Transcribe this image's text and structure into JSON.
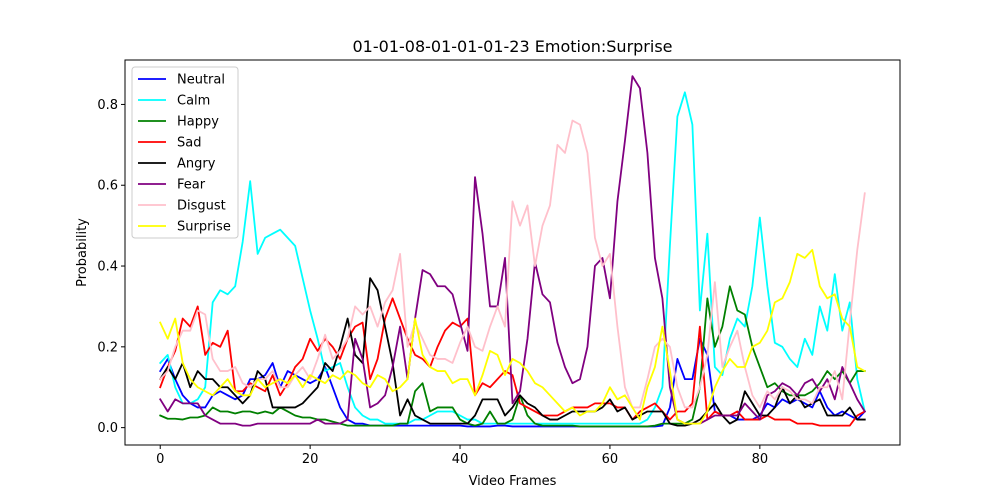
{
  "chart_data": {
    "type": "line",
    "title": "01-01-08-01-01-01-23 Emotion:Surprise",
    "xlabel": "Video Frames",
    "ylabel": "Probability",
    "xlim": [
      -4.7,
      98.7
    ],
    "ylim": [
      -0.043,
      0.91
    ],
    "xticks": [
      0,
      20,
      40,
      60,
      80
    ],
    "yticks": [
      0.0,
      0.2,
      0.4,
      0.6,
      0.8
    ],
    "ytick_labels": [
      "0.0",
      "0.2",
      "0.4",
      "0.6",
      "0.8"
    ],
    "legend_position": "upper-left",
    "grid": false,
    "x": [
      0,
      1,
      2,
      3,
      4,
      5,
      6,
      7,
      8,
      9,
      10,
      11,
      12,
      13,
      14,
      15,
      16,
      17,
      18,
      19,
      20,
      21,
      22,
      23,
      24,
      25,
      26,
      27,
      28,
      29,
      30,
      31,
      32,
      33,
      34,
      35,
      36,
      37,
      38,
      39,
      40,
      41,
      42,
      43,
      44,
      45,
      46,
      47,
      48,
      49,
      50,
      51,
      52,
      53,
      54,
      55,
      56,
      57,
      58,
      59,
      60,
      61,
      62,
      63,
      64,
      65,
      66,
      67,
      68,
      69,
      70,
      71,
      72,
      73,
      74,
      75,
      76,
      77,
      78,
      79,
      80,
      81,
      82,
      83,
      84,
      85,
      86,
      87,
      88,
      89,
      90,
      91,
      92,
      93,
      94
    ],
    "series": [
      {
        "name": "Neutral",
        "color": "#0000ff",
        "values": [
          0.14,
          0.17,
          0.12,
          0.08,
          0.06,
          0.05,
          0.05,
          0.08,
          0.09,
          0.08,
          0.07,
          0.08,
          0.12,
          0.12,
          0.13,
          0.16,
          0.1,
          0.14,
          0.13,
          0.12,
          0.11,
          0.12,
          0.15,
          0.1,
          0.05,
          0.02,
          0.01,
          0.01,
          0.005,
          0.005,
          0.005,
          0.005,
          0.005,
          0.005,
          0.005,
          0.005,
          0.005,
          0.005,
          0.005,
          0.005,
          0.005,
          0.003,
          0.003,
          0.003,
          0.003,
          0.005,
          0.005,
          0.003,
          0.003,
          0.003,
          0.003,
          0.003,
          0.003,
          0.003,
          0.003,
          0.003,
          0.003,
          0.003,
          0.003,
          0.003,
          0.003,
          0.003,
          0.003,
          0.003,
          0.003,
          0.003,
          0.003,
          0.005,
          0.05,
          0.17,
          0.12,
          0.12,
          0.22,
          0.18,
          0.04,
          0.03,
          0.03,
          0.02,
          0.02,
          0.02,
          0.03,
          0.06,
          0.05,
          0.07,
          0.06,
          0.07,
          0.06,
          0.05,
          0.09,
          0.05,
          0.03,
          0.04,
          0.03,
          0.02,
          0.04
        ]
      },
      {
        "name": "Calm",
        "color": "#00ffff",
        "values": [
          0.16,
          0.18,
          0.1,
          0.06,
          0.06,
          0.07,
          0.1,
          0.31,
          0.34,
          0.33,
          0.35,
          0.46,
          0.61,
          0.43,
          0.47,
          0.48,
          0.49,
          0.47,
          0.45,
          0.37,
          0.29,
          0.22,
          0.14,
          0.15,
          0.16,
          0.1,
          0.05,
          0.03,
          0.02,
          0.02,
          0.01,
          0.01,
          0.01,
          0.01,
          0.02,
          0.02,
          0.03,
          0.04,
          0.04,
          0.04,
          0.03,
          0.02,
          0.02,
          0.01,
          0.01,
          0.01,
          0.01,
          0.01,
          0.01,
          0.01,
          0.01,
          0.01,
          0.01,
          0.01,
          0.01,
          0.01,
          0.01,
          0.01,
          0.01,
          0.01,
          0.01,
          0.01,
          0.01,
          0.01,
          0.01,
          0.02,
          0.05,
          0.1,
          0.45,
          0.77,
          0.83,
          0.75,
          0.29,
          0.48,
          0.15,
          0.13,
          0.22,
          0.27,
          0.25,
          0.35,
          0.52,
          0.35,
          0.21,
          0.2,
          0.17,
          0.15,
          0.22,
          0.18,
          0.3,
          0.24,
          0.38,
          0.24,
          0.31,
          0.12,
          0.04
        ]
      },
      {
        "name": "Happy",
        "color": "#008000",
        "values": [
          0.03,
          0.022,
          0.022,
          0.02,
          0.025,
          0.025,
          0.03,
          0.05,
          0.04,
          0.04,
          0.035,
          0.04,
          0.04,
          0.035,
          0.04,
          0.035,
          0.05,
          0.04,
          0.03,
          0.025,
          0.025,
          0.02,
          0.02,
          0.015,
          0.01,
          0.005,
          0.005,
          0.005,
          0.005,
          0.005,
          0.005,
          0.005,
          0.01,
          0.01,
          0.09,
          0.11,
          0.04,
          0.05,
          0.05,
          0.05,
          0.02,
          0.01,
          0.005,
          0.01,
          0.04,
          0.01,
          0.01,
          0.02,
          0.08,
          0.03,
          0.01,
          0.005,
          0.005,
          0.005,
          0.005,
          0.005,
          0.003,
          0.003,
          0.003,
          0.003,
          0.003,
          0.003,
          0.003,
          0.003,
          0.003,
          0.003,
          0.005,
          0.01,
          0.01,
          0.01,
          0.01,
          0.02,
          0.1,
          0.32,
          0.2,
          0.25,
          0.35,
          0.29,
          0.28,
          0.2,
          0.15,
          0.1,
          0.11,
          0.09,
          0.08,
          0.08,
          0.08,
          0.09,
          0.11,
          0.14,
          0.12,
          0.14,
          0.11,
          0.14,
          0.14
        ]
      },
      {
        "name": "Sad",
        "color": "#ff0000",
        "values": [
          0.1,
          0.15,
          0.19,
          0.27,
          0.25,
          0.3,
          0.18,
          0.21,
          0.2,
          0.24,
          0.09,
          0.09,
          0.11,
          0.1,
          0.09,
          0.13,
          0.08,
          0.11,
          0.15,
          0.17,
          0.22,
          0.19,
          0.22,
          0.2,
          0.17,
          0.22,
          0.25,
          0.26,
          0.12,
          0.17,
          0.27,
          0.32,
          0.27,
          0.22,
          0.18,
          0.17,
          0.15,
          0.2,
          0.24,
          0.26,
          0.25,
          0.27,
          0.08,
          0.11,
          0.1,
          0.12,
          0.14,
          0.13,
          0.06,
          0.05,
          0.04,
          0.03,
          0.03,
          0.03,
          0.04,
          0.05,
          0.05,
          0.05,
          0.06,
          0.06,
          0.06,
          0.05,
          0.05,
          0.02,
          0.04,
          0.05,
          0.06,
          0.04,
          0.02,
          0.04,
          0.04,
          0.06,
          0.25,
          0.02,
          0.04,
          0.03,
          0.03,
          0.04,
          0.02,
          0.02,
          0.02,
          0.03,
          0.02,
          0.02,
          0.02,
          0.01,
          0.01,
          0.01,
          0.005,
          0.005,
          0.005,
          0.005,
          0.005,
          0.03,
          0.04
        ]
      },
      {
        "name": "Angry",
        "color": "#000000",
        "values": [
          0.12,
          0.15,
          0.12,
          0.16,
          0.1,
          0.14,
          0.12,
          0.12,
          0.1,
          0.1,
          0.08,
          0.06,
          0.08,
          0.14,
          0.12,
          0.05,
          0.05,
          0.05,
          0.05,
          0.06,
          0.08,
          0.1,
          0.16,
          0.14,
          0.2,
          0.27,
          0.18,
          0.16,
          0.37,
          0.34,
          0.25,
          0.16,
          0.03,
          0.07,
          0.03,
          0.02,
          0.01,
          0.01,
          0.01,
          0.01,
          0.01,
          0.01,
          0.03,
          0.07,
          0.07,
          0.07,
          0.03,
          0.05,
          0.08,
          0.06,
          0.05,
          0.03,
          0.02,
          0.02,
          0.03,
          0.04,
          0.04,
          0.04,
          0.04,
          0.05,
          0.07,
          0.04,
          0.05,
          0.02,
          0.03,
          0.04,
          0.04,
          0.04,
          0.01,
          0.005,
          0.005,
          0.01,
          0.02,
          0.04,
          0.06,
          0.03,
          0.01,
          0.02,
          0.09,
          0.06,
          0.03,
          0.03,
          0.05,
          0.1,
          0.06,
          0.08,
          0.05,
          0.06,
          0.07,
          0.03,
          0.03,
          0.03,
          0.05,
          0.02,
          0.02
        ]
      },
      {
        "name": "Fear",
        "color": "#800080",
        "values": [
          0.07,
          0.04,
          0.07,
          0.06,
          0.06,
          0.06,
          0.03,
          0.02,
          0.01,
          0.01,
          0.01,
          0.005,
          0.005,
          0.01,
          0.01,
          0.01,
          0.01,
          0.01,
          0.01,
          0.01,
          0.01,
          0.02,
          0.01,
          0.01,
          0.01,
          0.02,
          0.22,
          0.17,
          0.05,
          0.06,
          0.08,
          0.15,
          0.25,
          0.12,
          0.27,
          0.39,
          0.38,
          0.35,
          0.35,
          0.33,
          0.26,
          0.19,
          0.62,
          0.48,
          0.3,
          0.3,
          0.42,
          0.06,
          0.09,
          0.22,
          0.41,
          0.33,
          0.31,
          0.21,
          0.15,
          0.11,
          0.12,
          0.2,
          0.4,
          0.42,
          0.32,
          0.56,
          0.71,
          0.87,
          0.84,
          0.68,
          0.42,
          0.32,
          0.1,
          0.02,
          0.01,
          0.01,
          0.01,
          0.02,
          0.03,
          0.03,
          0.03,
          0.03,
          0.06,
          0.04,
          0.02,
          0.08,
          0.09,
          0.11,
          0.1,
          0.08,
          0.11,
          0.12,
          0.09,
          0.12,
          0.07,
          0.15,
          0.11,
          0.07,
          0.04
        ]
      },
      {
        "name": "Disgust",
        "color": "#ffc0cb",
        "values": [
          0.12,
          0.14,
          0.2,
          0.24,
          0.24,
          0.29,
          0.28,
          0.17,
          0.14,
          0.14,
          0.15,
          0.11,
          0.1,
          0.12,
          0.12,
          0.14,
          0.1,
          0.1,
          0.13,
          0.15,
          0.12,
          0.17,
          0.23,
          0.17,
          0.19,
          0.22,
          0.3,
          0.28,
          0.3,
          0.25,
          0.31,
          0.34,
          0.43,
          0.2,
          0.26,
          0.22,
          0.18,
          0.17,
          0.17,
          0.16,
          0.21,
          0.25,
          0.2,
          0.19,
          0.25,
          0.3,
          0.25,
          0.56,
          0.5,
          0.55,
          0.4,
          0.5,
          0.55,
          0.7,
          0.68,
          0.76,
          0.75,
          0.68,
          0.47,
          0.4,
          0.43,
          0.25,
          0.1,
          0.05,
          0.05,
          0.12,
          0.2,
          0.22,
          0.2,
          0.1,
          0.05,
          0.05,
          0.1,
          0.18,
          0.36,
          0.15,
          0.2,
          0.24,
          0.15,
          0.08,
          0.05,
          0.09,
          0.07,
          0.1,
          0.09,
          0.07,
          0.07,
          0.06,
          0.1,
          0.1,
          0.14,
          0.07,
          0.26,
          0.44,
          0.58
        ]
      },
      {
        "name": "Surprise",
        "color": "#ffff00",
        "values": [
          0.26,
          0.22,
          0.27,
          0.16,
          0.12,
          0.1,
          0.09,
          0.08,
          0.1,
          0.12,
          0.09,
          0.08,
          0.08,
          0.12,
          0.1,
          0.11,
          0.12,
          0.11,
          0.13,
          0.1,
          0.13,
          0.12,
          0.11,
          0.13,
          0.12,
          0.14,
          0.13,
          0.11,
          0.1,
          0.13,
          0.12,
          0.09,
          0.1,
          0.12,
          0.27,
          0.18,
          0.15,
          0.14,
          0.14,
          0.11,
          0.12,
          0.12,
          0.08,
          0.13,
          0.19,
          0.18,
          0.13,
          0.17,
          0.16,
          0.14,
          0.11,
          0.1,
          0.08,
          0.06,
          0.04,
          0.05,
          0.03,
          0.04,
          0.04,
          0.06,
          0.1,
          0.07,
          0.08,
          0.05,
          0.02,
          0.1,
          0.15,
          0.25,
          0.14,
          0.02,
          0.01,
          0.01,
          0.01,
          0.04,
          0.1,
          0.14,
          0.17,
          0.15,
          0.15,
          0.2,
          0.21,
          0.24,
          0.31,
          0.32,
          0.36,
          0.43,
          0.42,
          0.44,
          0.35,
          0.32,
          0.33,
          0.27,
          0.25,
          0.15,
          0.14
        ]
      }
    ]
  }
}
